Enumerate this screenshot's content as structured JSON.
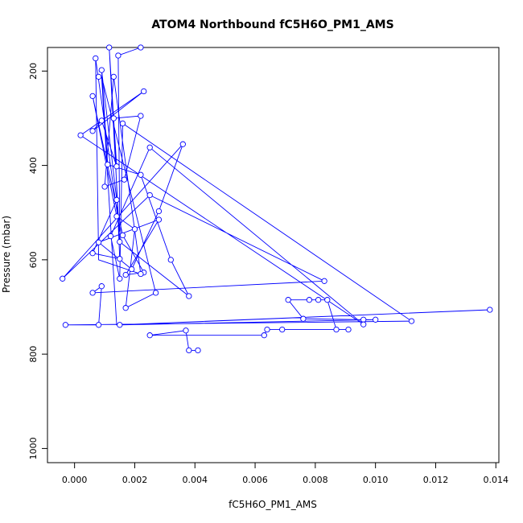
{
  "chart_data": {
    "type": "line",
    "title": "ATOM4 Northbound fC5H6O_PM1_AMS",
    "xlabel": "fC5H6O_PM1_AMS",
    "ylabel": "Pressure (mbar)",
    "xlim": [
      -0.0009,
      0.0141
    ],
    "ylim": [
      1030,
      150
    ],
    "y_reversed": true,
    "grid": false,
    "xticks": [
      0.0,
      0.002,
      0.004,
      0.006,
      0.008,
      0.01,
      0.012,
      0.014
    ],
    "xtick_labels": [
      "0.000",
      "0.002",
      "0.004",
      "0.006",
      "0.008",
      "0.010",
      "0.012",
      "0.014"
    ],
    "yticks": [
      200,
      400,
      600,
      800,
      1000
    ],
    "ytick_labels": [
      "200",
      "400",
      "600",
      "800",
      "1000"
    ],
    "series": [
      {
        "color": "#0000ff",
        "marker": "open-circle",
        "points": [
          [
            0.0022,
            150
          ],
          [
            0.00145,
            167
          ],
          [
            0.0007,
            173
          ],
          [
            0.00115,
            150
          ],
          [
            0.0009,
            198
          ],
          [
            0.0013,
            212
          ],
          [
            0.0008,
            212
          ],
          [
            0.0023,
            243
          ],
          [
            0.0006,
            253
          ],
          [
            0.0009,
            305
          ],
          [
            0.0013,
            300
          ],
          [
            0.0006,
            327
          ],
          [
            0.0002,
            336
          ],
          [
            0.0016,
            311
          ],
          [
            0.0022,
            295
          ],
          [
            0.0036,
            355
          ],
          [
            0.0025,
            362
          ],
          [
            0.0011,
            398
          ],
          [
            0.0014,
            402
          ],
          [
            0.0022,
            420
          ],
          [
            0.00165,
            430
          ],
          [
            0.001,
            445
          ],
          [
            0.0025,
            463
          ],
          [
            0.0014,
            473
          ],
          [
            0.0028,
            497
          ],
          [
            0.0014,
            508
          ],
          [
            0.0028,
            515
          ],
          [
            0.0016,
            548
          ],
          [
            0.002,
            535
          ],
          [
            0.0012,
            550
          ],
          [
            0.0008,
            563
          ],
          [
            0.0015,
            562
          ],
          [
            0.0006,
            586
          ],
          [
            0.0015,
            598
          ],
          [
            0.0032,
            600
          ],
          [
            0.0019,
            620
          ],
          [
            0.0023,
            627
          ],
          [
            0.0022,
            630
          ],
          [
            0.0017,
            632
          ],
          [
            0.0015,
            640
          ],
          [
            -0.0004,
            640
          ],
          [
            0.0083,
            645
          ],
          [
            0.0009,
            656
          ],
          [
            0.0027,
            670
          ],
          [
            0.0006,
            670
          ],
          [
            0.0038,
            677
          ],
          [
            0.0071,
            685
          ],
          [
            0.0078,
            685
          ],
          [
            0.0081,
            685
          ],
          [
            0.0084,
            685
          ],
          [
            0.0017,
            702
          ],
          [
            0.0138,
            706
          ],
          [
            0.0076,
            725
          ],
          [
            0.0096,
            727
          ],
          [
            0.01,
            727
          ],
          [
            0.0112,
            730
          ],
          [
            0.0096,
            737
          ],
          [
            -0.0003,
            738
          ],
          [
            0.0008,
            738
          ],
          [
            0.0015,
            738
          ],
          [
            0.0064,
            748
          ],
          [
            0.0069,
            748
          ],
          [
            0.0087,
            748
          ],
          [
            0.0091,
            748
          ],
          [
            0.0037,
            750
          ],
          [
            0.0025,
            760
          ],
          [
            0.0063,
            760
          ],
          [
            0.0038,
            792
          ],
          [
            0.0041,
            792
          ]
        ],
        "path": [
          [
            0.0022,
            150
          ],
          [
            0.00145,
            167
          ],
          [
            0.0015,
            540
          ],
          [
            0.0007,
            173
          ],
          [
            0.0008,
            600
          ],
          [
            0.0022,
            630
          ],
          [
            0.0013,
            212
          ],
          [
            0.001,
            445
          ],
          [
            0.00165,
            430
          ],
          [
            0.0022,
            295
          ],
          [
            0.0013,
            300
          ],
          [
            0.0015,
            598
          ],
          [
            0.0006,
            586
          ],
          [
            0.0014,
            473
          ],
          [
            0.0009,
            198
          ],
          [
            0.0011,
            398
          ],
          [
            0.0022,
            420
          ],
          [
            0.0032,
            600
          ],
          [
            0.0038,
            677
          ],
          [
            0.0015,
            562
          ],
          [
            0.00115,
            150
          ],
          [
            0.0014,
            402
          ],
          [
            0.0009,
            305
          ],
          [
            0.0006,
            327
          ],
          [
            0.0023,
            243
          ],
          [
            0.0002,
            336
          ],
          [
            0.0096,
            737
          ],
          [
            0.0025,
            362
          ],
          [
            0.0012,
            550
          ],
          [
            0.0015,
            640
          ],
          [
            0.0016,
            311
          ],
          [
            0.0112,
            730
          ],
          [
            -0.0003,
            738
          ],
          [
            0.0008,
            738
          ],
          [
            0.0009,
            656
          ],
          [
            0.0006,
            670
          ],
          [
            0.0083,
            645
          ],
          [
            0.0025,
            463
          ],
          [
            -0.0004,
            640
          ],
          [
            0.0036,
            355
          ],
          [
            0.0028,
            497
          ],
          [
            0.0019,
            620
          ],
          [
            0.0008,
            563
          ],
          [
            0.0028,
            515
          ],
          [
            0.0017,
            632
          ],
          [
            0.0023,
            627
          ],
          [
            0.0016,
            548
          ],
          [
            0.0006,
            253
          ],
          [
            0.0014,
            508
          ],
          [
            0.002,
            535
          ],
          [
            0.0017,
            702
          ],
          [
            0.0027,
            670
          ],
          [
            0.0009,
            212
          ],
          [
            0.0014,
            738
          ],
          [
            0.0138,
            706
          ],
          [
            0.0015,
            738
          ],
          [
            0.01,
            727
          ],
          [
            0.0096,
            727
          ],
          [
            0.0076,
            725
          ],
          [
            0.0071,
            685
          ],
          [
            0.0078,
            685
          ],
          [
            0.0081,
            685
          ],
          [
            0.0084,
            685
          ],
          [
            0.0087,
            748
          ],
          [
            0.0091,
            748
          ],
          [
            0.0069,
            748
          ],
          [
            0.0064,
            748
          ],
          [
            0.0063,
            760
          ],
          [
            0.0025,
            760
          ],
          [
            0.0037,
            750
          ],
          [
            0.0038,
            792
          ],
          [
            0.0041,
            792
          ]
        ]
      }
    ]
  }
}
